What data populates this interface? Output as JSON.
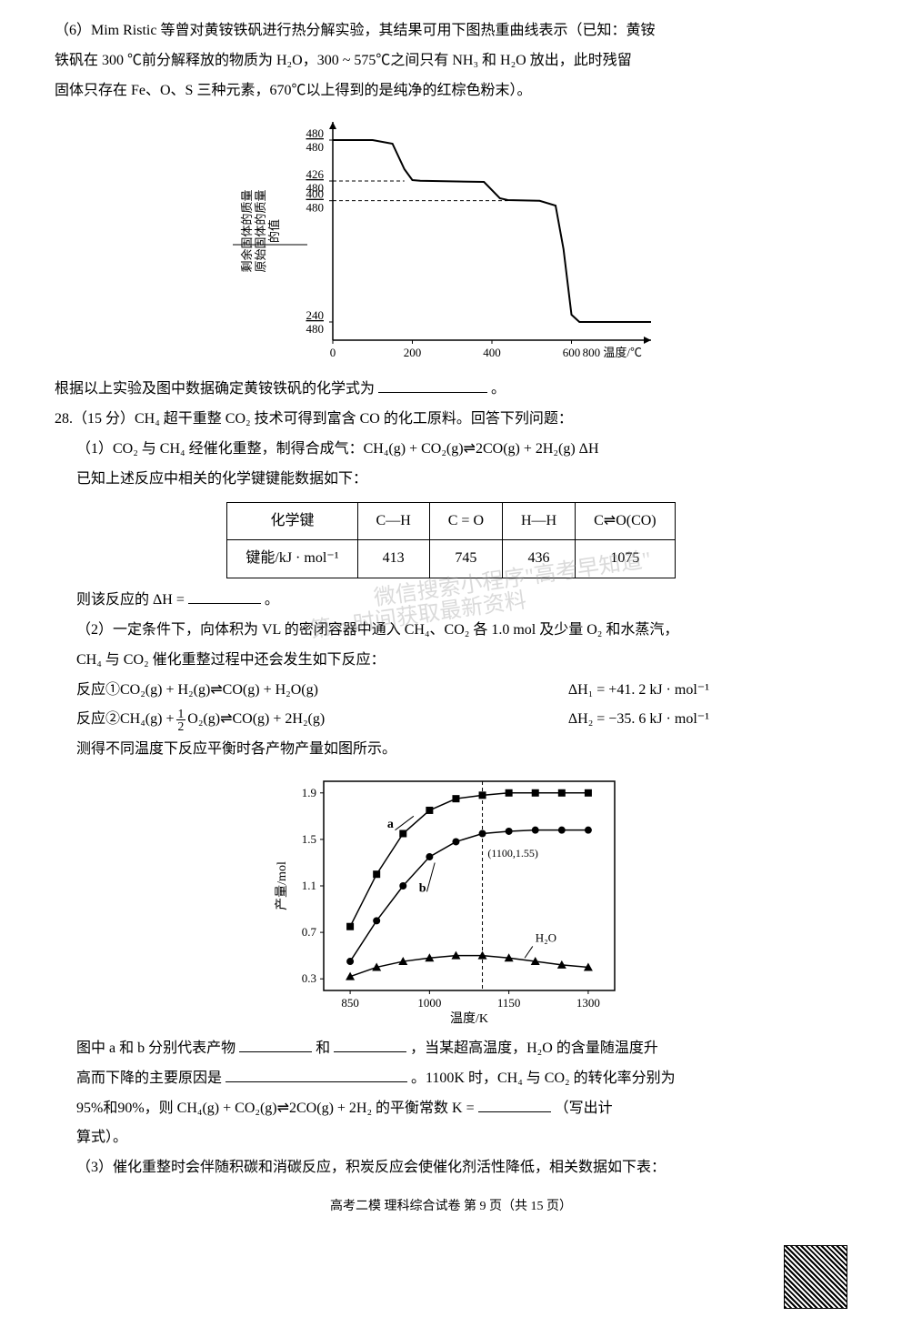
{
  "q6": {
    "line1": "（6）Mim Ristic 等曾对黄铵铁矾进行热分解实验，其结果可用下图热重曲线表示（已知：黄铵",
    "line2": "铁矾在 300 ℃前分解释放的物质为 H₂O，300 ~ 575℃之间只有 NH₃ 和 H₂O 放出，此时残留",
    "line3": "固体只存在 Fe、O、S 三种元素，670℃以上得到的是纯净的红棕色粉末）。",
    "conclusion": "根据以上实验及图中数据确定黄铵铁矾的化学式为",
    "period": "。"
  },
  "chart1": {
    "ylabel_top": "剩余固体的质量",
    "ylabel_bottom": "原始固体的质量",
    "ylabel_suffix": "的值",
    "xlabel": "800 温度/℃",
    "yticks": [
      "480/480",
      "426/480",
      "400/480",
      "240/480"
    ],
    "ytick_vals": [
      1.0,
      0.8875,
      0.8333,
      0.5
    ],
    "xticks": [
      "0",
      "200",
      "400",
      "600"
    ],
    "xtick_vals": [
      0,
      200,
      400,
      600
    ],
    "ylim": [
      0.45,
      1.05
    ],
    "xlim": [
      0,
      800
    ],
    "line_points": [
      [
        0,
        1.0
      ],
      [
        100,
        1.0
      ],
      [
        150,
        0.99
      ],
      [
        180,
        0.92
      ],
      [
        200,
        0.89
      ],
      [
        220,
        0.888
      ],
      [
        380,
        0.885
      ],
      [
        420,
        0.84
      ],
      [
        440,
        0.835
      ],
      [
        520,
        0.833
      ],
      [
        560,
        0.82
      ],
      [
        580,
        0.7
      ],
      [
        600,
        0.52
      ],
      [
        620,
        0.5
      ],
      [
        800,
        0.5
      ]
    ],
    "dash_points_1": {
      "y": 0.8875,
      "x_end": 180
    },
    "dash_points_2": {
      "y": 0.8333,
      "x_end": 440
    },
    "stroke": "#000000",
    "stroke_width": 2
  },
  "q28": {
    "header": "28.（15 分）CH₄ 超干重整 CO₂ 技术可得到富含 CO 的化工原料。回答下列问题：",
    "p1": "（1）CO₂ 与 CH₄ 经催化重整，制得合成气：CH₄(g) + CO₂(g)⇌2CO(g) + 2H₂(g)  ΔH",
    "p1b": "已知上述反应中相关的化学键键能数据如下：",
    "table": {
      "headers": [
        "化学键",
        "C—H",
        "C = O",
        "H—H",
        "C⇌O(CO)"
      ],
      "row_label": "键能/kJ · mol⁻¹",
      "values": [
        "413",
        "745",
        "436",
        "1075"
      ]
    },
    "deltaH": "则该反应的 ΔH = ",
    "p2": "（2）一定条件下，向体积为 VL 的密闭容器中通入 CH₄、CO₂ 各 1.0 mol 及少量 O₂ 和水蒸汽，",
    "p2b": "CH₄ 与 CO₂ 催化重整过程中还会发生如下反应：",
    "r1": "反应①CO₂(g) + H₂(g)⇌CO(g)  + H₂O(g)",
    "r1_dh": "ΔH₁ =  +41. 2 kJ · mol⁻¹",
    "r2_left": "反应②CH₄(g) + ",
    "r2_frac_top": "1",
    "r2_frac_bot": "2",
    "r2_right": "O₂(g)⇌CO(g) + 2H₂(g)",
    "r2_dh": "ΔH₂ = −35. 6 kJ · mol⁻¹",
    "p2c": "测得不同温度下反应平衡时各产物产量如图所示。"
  },
  "chart2": {
    "ylabel": "产量/mol",
    "xlabel": "温度/K",
    "yticks": [
      "0.3",
      "0.7",
      "1.1",
      "1.5",
      "1.9"
    ],
    "ytick_vals": [
      0.3,
      0.7,
      1.1,
      1.5,
      1.9
    ],
    "xticks": [
      "850",
      "1000",
      "1150",
      "1300"
    ],
    "xtick_vals": [
      850,
      1000,
      1150,
      1300
    ],
    "ylim": [
      0.2,
      2.0
    ],
    "xlim": [
      800,
      1350
    ],
    "annotation": "(1100,1.55)",
    "label_a": "a",
    "label_b": "b",
    "label_h2o": "H₂O",
    "series_a": {
      "marker": "square",
      "points": [
        [
          850,
          0.75
        ],
        [
          900,
          1.2
        ],
        [
          950,
          1.55
        ],
        [
          1000,
          1.75
        ],
        [
          1050,
          1.85
        ],
        [
          1100,
          1.88
        ],
        [
          1150,
          1.9
        ],
        [
          1200,
          1.9
        ],
        [
          1250,
          1.9
        ],
        [
          1300,
          1.9
        ]
      ],
      "color": "#000000"
    },
    "series_b": {
      "marker": "circle",
      "points": [
        [
          850,
          0.45
        ],
        [
          900,
          0.8
        ],
        [
          950,
          1.1
        ],
        [
          1000,
          1.35
        ],
        [
          1050,
          1.48
        ],
        [
          1100,
          1.55
        ],
        [
          1150,
          1.57
        ],
        [
          1200,
          1.58
        ],
        [
          1250,
          1.58
        ],
        [
          1300,
          1.58
        ]
      ],
      "color": "#000000"
    },
    "series_h2o": {
      "marker": "triangle",
      "points": [
        [
          850,
          0.32
        ],
        [
          900,
          0.4
        ],
        [
          950,
          0.45
        ],
        [
          1000,
          0.48
        ],
        [
          1050,
          0.5
        ],
        [
          1100,
          0.5
        ],
        [
          1150,
          0.48
        ],
        [
          1200,
          0.45
        ],
        [
          1250,
          0.42
        ],
        [
          1300,
          0.4
        ]
      ],
      "color": "#000000"
    },
    "vline_x": 1100,
    "stroke_width": 1.5
  },
  "q28_after": {
    "l1a": "图中 a 和 b 分别代表产物",
    "l1b": "和",
    "l1c": "，当某超高温度，H₂O 的含量随温度升",
    "l2a": "高而下降的主要原因是",
    "l2b": "。1100K 时，CH₄ 与 CO₂ 的转化率分别为",
    "l3a": "95%和90%，则 CH₄(g)  + CO₂(g)⇌2CO(g) + 2H₂ 的平衡常数 K = ",
    "l3b": "（写出计",
    "l4": "算式）。",
    "p3": "（3）催化重整时会伴随积碳和消碳反应，积炭反应会使催化剂活性降低，相关数据如下表："
  },
  "footer": "高考二模 理科综合试卷 第 9 页（共 15 页）",
  "watermarks": {
    "w1": "微信搜索小程序\"高考早知道\"",
    "w2": "第一时间获取最新资料"
  }
}
